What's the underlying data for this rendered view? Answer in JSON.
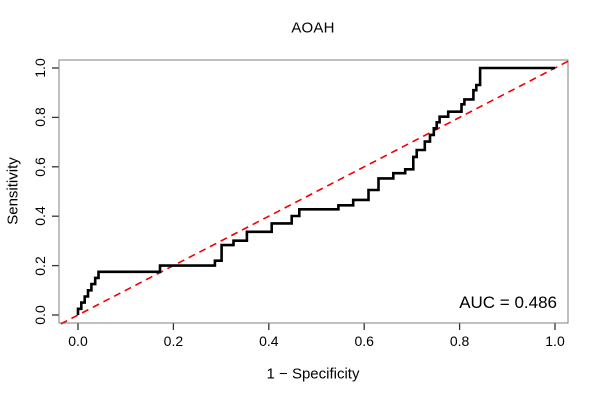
{
  "title": "AOAH",
  "axes": {
    "x_label": "1 − Specificity",
    "y_label": "Sensitivity",
    "x_ticks": [
      "0.0",
      "0.2",
      "0.4",
      "0.6",
      "0.8",
      "1.0"
    ],
    "y_ticks": [
      "0.0",
      "0.2",
      "0.4",
      "0.6",
      "0.8",
      "1.0"
    ]
  },
  "annotation": {
    "auc_label": "AUC = 0.486"
  },
  "colors": {
    "curve": "#000000",
    "diagonal": "#f00000",
    "box": "#808080",
    "tick": "#333333",
    "text": "#000000",
    "background": "#ffffff"
  },
  "chart_data": {
    "type": "line",
    "title": "AOAH",
    "xlabel": "1 − Specificity",
    "ylabel": "Sensitivity",
    "xlim": [
      0,
      1
    ],
    "ylim": [
      0,
      1
    ],
    "grid": false,
    "legend": "none",
    "auc": 0.486,
    "series": [
      {
        "name": "ROC step curve",
        "color": "#000000",
        "dash": "solid",
        "points": [
          [
            0,
            0
          ],
          [
            0,
            0.025
          ],
          [
            0.007,
            0.025
          ],
          [
            0.007,
            0.05
          ],
          [
            0.014,
            0.05
          ],
          [
            0.014,
            0.075
          ],
          [
            0.021,
            0.075
          ],
          [
            0.021,
            0.1
          ],
          [
            0.028,
            0.1
          ],
          [
            0.028,
            0.125
          ],
          [
            0.036,
            0.125
          ],
          [
            0.036,
            0.15
          ],
          [
            0.043,
            0.15
          ],
          [
            0.043,
            0.175
          ],
          [
            0.05,
            0.175
          ],
          [
            0.172,
            0.175
          ],
          [
            0.172,
            0.2
          ],
          [
            0.287,
            0.2
          ],
          [
            0.287,
            0.22
          ],
          [
            0.301,
            0.22
          ],
          [
            0.301,
            0.283
          ],
          [
            0.326,
            0.283
          ],
          [
            0.326,
            0.301
          ],
          [
            0.354,
            0.301
          ],
          [
            0.354,
            0.337
          ],
          [
            0.406,
            0.337
          ],
          [
            0.406,
            0.371
          ],
          [
            0.448,
            0.371
          ],
          [
            0.448,
            0.401
          ],
          [
            0.464,
            0.401
          ],
          [
            0.464,
            0.428
          ],
          [
            0.546,
            0.428
          ],
          [
            0.546,
            0.444
          ],
          [
            0.577,
            0.444
          ],
          [
            0.577,
            0.466
          ],
          [
            0.609,
            0.466
          ],
          [
            0.609,
            0.506
          ],
          [
            0.63,
            0.506
          ],
          [
            0.63,
            0.553
          ],
          [
            0.661,
            0.553
          ],
          [
            0.661,
            0.574
          ],
          [
            0.686,
            0.574
          ],
          [
            0.686,
            0.59
          ],
          [
            0.703,
            0.59
          ],
          [
            0.703,
            0.64
          ],
          [
            0.71,
            0.64
          ],
          [
            0.71,
            0.668
          ],
          [
            0.727,
            0.668
          ],
          [
            0.727,
            0.702
          ],
          [
            0.738,
            0.702
          ],
          [
            0.738,
            0.729
          ],
          [
            0.746,
            0.729
          ],
          [
            0.746,
            0.756
          ],
          [
            0.752,
            0.756
          ],
          [
            0.752,
            0.78
          ],
          [
            0.758,
            0.78
          ],
          [
            0.758,
            0.803
          ],
          [
            0.776,
            0.803
          ],
          [
            0.776,
            0.823
          ],
          [
            0.804,
            0.823
          ],
          [
            0.804,
            0.853
          ],
          [
            0.81,
            0.853
          ],
          [
            0.81,
            0.873
          ],
          [
            0.829,
            0.873
          ],
          [
            0.829,
            0.91
          ],
          [
            0.835,
            0.91
          ],
          [
            0.835,
            0.931
          ],
          [
            0.843,
            0.931
          ],
          [
            0.843,
            1.0
          ],
          [
            1.0,
            1.0
          ]
        ]
      },
      {
        "name": "Chance diagonal",
        "color": "#f00000",
        "dash": "dashed",
        "points": [
          [
            0,
            0
          ],
          [
            1,
            1
          ]
        ]
      }
    ]
  }
}
